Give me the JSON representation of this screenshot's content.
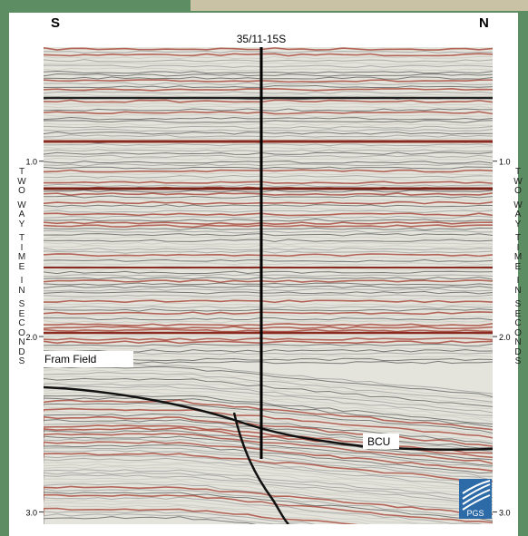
{
  "section": {
    "left_label": "S",
    "right_label": "N",
    "well_label": "35/11-15S",
    "axis_title": "TWOWAYTIMEINSECONDS",
    "ylim": [
      0.35,
      3.07
    ],
    "yticks": [
      {
        "value": 1,
        "label": "1.0"
      },
      {
        "value": 2,
        "label": "2.0"
      },
      {
        "value": 3,
        "label": "3.0"
      }
    ],
    "annotations": [
      "Fram Field",
      "BCU"
    ],
    "logo": "PGS"
  }
}
